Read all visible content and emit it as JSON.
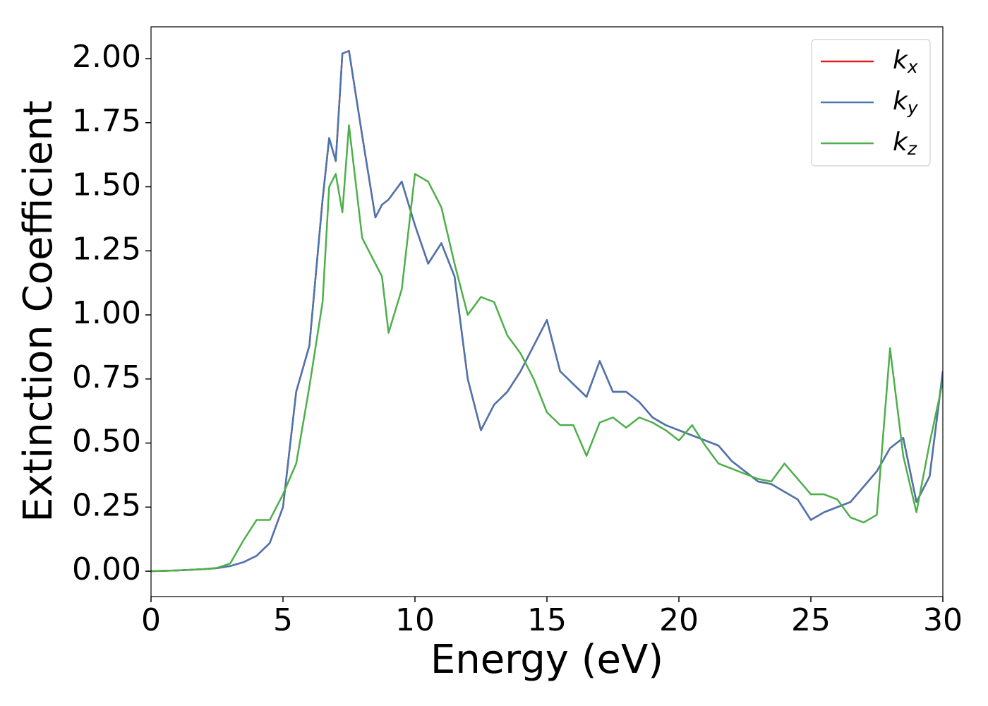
{
  "chart_data": {
    "type": "line",
    "xlabel": "Energy (eV)",
    "ylabel": "Extinction Coefficient",
    "x": [
      0,
      1,
      2,
      2.5,
      3,
      3.5,
      4,
      4.5,
      5,
      5.5,
      6,
      6.5,
      6.75,
      7,
      7.25,
      7.5,
      8,
      8.5,
      8.75,
      9,
      9.5,
      10,
      10.5,
      11,
      11.5,
      12,
      12.5,
      13,
      13.5,
      14,
      14.5,
      15,
      15.5,
      16,
      16.5,
      17,
      17.5,
      18,
      18.5,
      19,
      19.5,
      20,
      20.5,
      21,
      21.5,
      22,
      22.5,
      23,
      23.5,
      24,
      24.5,
      25,
      25.5,
      26,
      26.5,
      27,
      27.5,
      28,
      28.5,
      29,
      29.5,
      30
    ],
    "series": [
      {
        "name": "kx",
        "color": "#e41a1c",
        "values": [
          0,
          0.003,
          0.008,
          0.012,
          0.02,
          0.035,
          0.06,
          0.11,
          0.25,
          0.7,
          0.88,
          1.45,
          1.69,
          1.6,
          2.02,
          2.03,
          1.7,
          1.38,
          1.43,
          1.45,
          1.52,
          1.35,
          1.2,
          1.28,
          1.15,
          0.75,
          0.55,
          0.65,
          0.7,
          0.78,
          0.88,
          0.98,
          0.78,
          0.73,
          0.68,
          0.82,
          0.7,
          0.7,
          0.66,
          0.6,
          0.57,
          0.55,
          0.53,
          0.51,
          0.49,
          0.43,
          0.39,
          0.35,
          0.34,
          0.31,
          0.28,
          0.2,
          0.23,
          0.25,
          0.27,
          0.33,
          0.39,
          0.48,
          0.52,
          0.27,
          0.37,
          0.78
        ]
      },
      {
        "name": "ky",
        "color": "#4a76b0",
        "values": [
          0,
          0.003,
          0.008,
          0.012,
          0.02,
          0.035,
          0.06,
          0.11,
          0.25,
          0.7,
          0.88,
          1.45,
          1.69,
          1.6,
          2.02,
          2.03,
          1.7,
          1.38,
          1.43,
          1.45,
          1.52,
          1.35,
          1.2,
          1.28,
          1.15,
          0.75,
          0.55,
          0.65,
          0.7,
          0.78,
          0.88,
          0.98,
          0.78,
          0.73,
          0.68,
          0.82,
          0.7,
          0.7,
          0.66,
          0.6,
          0.57,
          0.55,
          0.53,
          0.51,
          0.49,
          0.43,
          0.39,
          0.35,
          0.34,
          0.31,
          0.28,
          0.2,
          0.23,
          0.25,
          0.27,
          0.33,
          0.39,
          0.48,
          0.52,
          0.27,
          0.37,
          0.78
        ]
      },
      {
        "name": "kz",
        "color": "#4daf4a",
        "values": [
          0,
          0.003,
          0.008,
          0.013,
          0.03,
          0.12,
          0.2,
          0.2,
          0.3,
          0.42,
          0.72,
          1.05,
          1.5,
          1.55,
          1.4,
          1.74,
          1.3,
          1.2,
          1.15,
          0.93,
          1.1,
          1.55,
          1.52,
          1.42,
          1.2,
          1.0,
          1.07,
          1.05,
          0.92,
          0.85,
          0.75,
          0.62,
          0.57,
          0.57,
          0.45,
          0.58,
          0.6,
          0.56,
          0.6,
          0.58,
          0.55,
          0.51,
          0.57,
          0.49,
          0.42,
          0.4,
          0.38,
          0.36,
          0.35,
          0.42,
          0.36,
          0.3,
          0.3,
          0.28,
          0.21,
          0.19,
          0.22,
          0.87,
          0.45,
          0.23,
          0.5,
          0.74
        ]
      }
    ],
    "xlim": [
      0,
      30
    ],
    "xticks": [
      0,
      5,
      10,
      15,
      20,
      25,
      30
    ],
    "ylim": [
      -0.099,
      2.124
    ],
    "yticks": [
      {
        "value": 0,
        "label": "0.00"
      },
      0.25,
      {
        "value": 0.5,
        "label": "0.50"
      },
      0.75,
      {
        "value": 1,
        "label": "1.00"
      },
      1.25,
      {
        "value": 1.5,
        "label": "1.50"
      },
      1.75,
      {
        "value": 2,
        "label": "2.00"
      }
    ],
    "legend": "upper right",
    "grid": false
  }
}
